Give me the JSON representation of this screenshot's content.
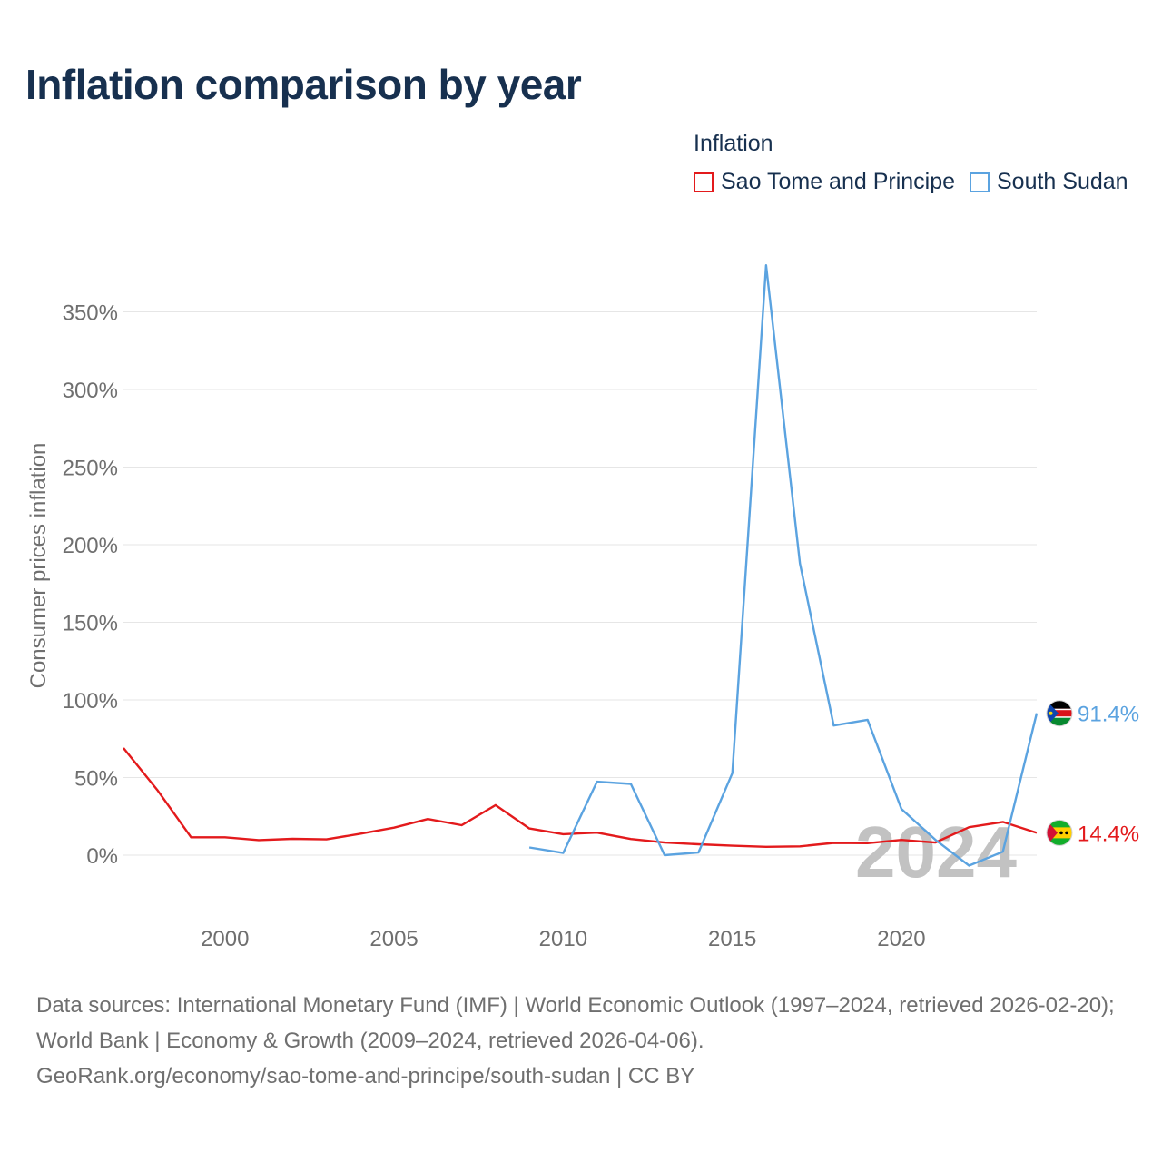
{
  "title": "Inflation comparison by year",
  "legend": {
    "heading": "Inflation",
    "items": [
      {
        "label": "Sao Tome and Principe",
        "color": "#e31a1c"
      },
      {
        "label": "South Sudan",
        "color": "#5ba3e0"
      }
    ]
  },
  "chart_data": {
    "type": "line",
    "title": "Inflation comparison by year",
    "xlabel": "",
    "ylabel": "Consumer prices inflation",
    "xlim": [
      1997,
      2024
    ],
    "ylim": [
      -20,
      380
    ],
    "x_ticks": [
      2000,
      2005,
      2010,
      2015,
      2020
    ],
    "y_ticks": [
      0,
      50,
      100,
      150,
      200,
      250,
      300,
      350
    ],
    "y_tick_labels": [
      "0%",
      "50%",
      "100%",
      "150%",
      "200%",
      "250%",
      "300%",
      "350%"
    ],
    "grid": true,
    "year_watermark": "2024",
    "series": [
      {
        "name": "Sao Tome and Principe",
        "color": "#e31a1c",
        "end_label": "14.4%",
        "flag": "sao-tome-and-principe-flag",
        "x": [
          1997,
          1998,
          1999,
          2000,
          2001,
          2002,
          2003,
          2004,
          2005,
          2006,
          2007,
          2008,
          2009,
          2010,
          2011,
          2012,
          2013,
          2014,
          2015,
          2016,
          2017,
          2018,
          2019,
          2020,
          2021,
          2022,
          2023,
          2024
        ],
        "values": [
          69,
          42,
          11.5,
          11.5,
          9.7,
          10.5,
          10.2,
          13.8,
          17.7,
          23.3,
          19.3,
          32.2,
          17.2,
          13.5,
          14.5,
          10.4,
          8.1,
          7.0,
          6.1,
          5.4,
          5.7,
          7.9,
          7.7,
          9.8,
          8.1,
          18.0,
          21.4,
          14.4
        ]
      },
      {
        "name": "South Sudan",
        "color": "#5ba3e0",
        "end_label": "91.4%",
        "flag": "south-sudan-flag",
        "x": [
          2009,
          2010,
          2011,
          2012,
          2013,
          2014,
          2015,
          2016,
          2017,
          2018,
          2019,
          2020,
          2021,
          2022,
          2023,
          2024
        ],
        "values": [
          5.0,
          1.4,
          47.3,
          45.9,
          0.0,
          1.7,
          52.8,
          380.0,
          187.9,
          83.5,
          87.2,
          29.7,
          10.0,
          -6.7,
          2.2,
          91.4
        ]
      }
    ]
  },
  "footer": {
    "line1": "Data sources: International Monetary Fund (IMF) | World Economic Outlook (1997–2024, retrieved 2026-02-20); World Bank | Economy & Growth (2009–2024, retrieved 2026-04-06).",
    "line2": "GeoRank.org/economy/sao-tome-and-principe/south-sudan | CC BY"
  }
}
